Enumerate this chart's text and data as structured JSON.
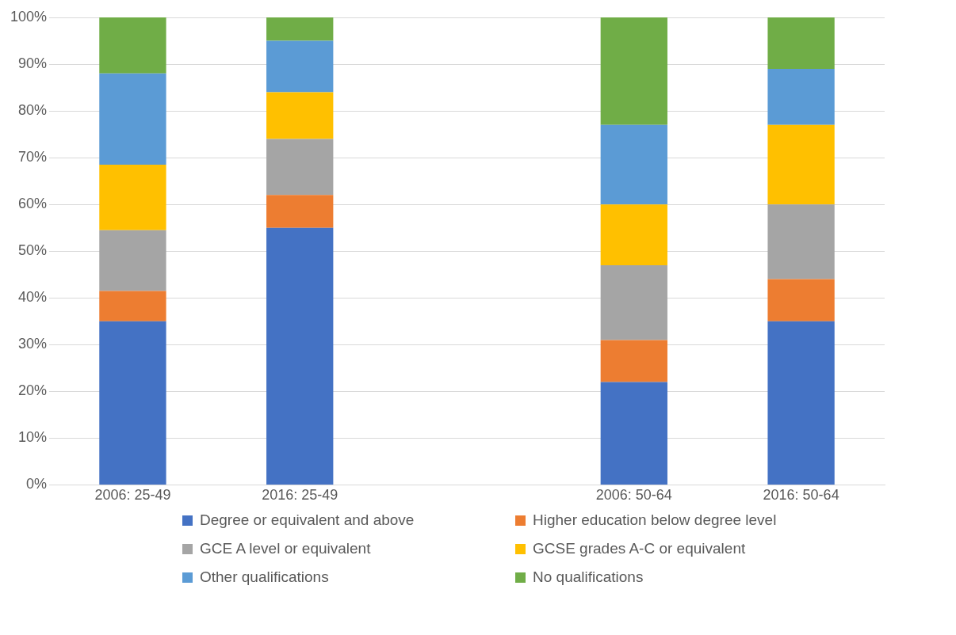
{
  "chart_data": {
    "type": "bar",
    "stacked": true,
    "categories": [
      "2006: 25-49",
      "2016: 25-49",
      null,
      "2006: 50-64",
      "2016: 50-64"
    ],
    "series": [
      {
        "name": "Degree or equivalent and above",
        "color": "#4472c4",
        "values": [
          35,
          55,
          null,
          22,
          35
        ]
      },
      {
        "name": "Higher education below degree level",
        "color": "#ed7d31",
        "values": [
          6.5,
          7,
          null,
          9,
          9
        ]
      },
      {
        "name": "GCE A level or equivalent",
        "color": "#a5a5a5",
        "values": [
          13,
          12,
          null,
          16,
          16
        ]
      },
      {
        "name": "GCSE grades A-C or equivalent",
        "color": "#ffc000",
        "values": [
          14,
          10,
          null,
          13,
          17
        ]
      },
      {
        "name": "Other qualifications",
        "color": "#5b9bd5",
        "values": [
          19.5,
          11,
          null,
          17,
          12
        ]
      },
      {
        "name": "No qualifications",
        "color": "#70ad47",
        "values": [
          12,
          5,
          null,
          23,
          11
        ]
      }
    ],
    "ylim": [
      0,
      100
    ],
    "yticks": [
      {
        "value": 0,
        "label": "0%"
      },
      {
        "value": 10,
        "label": "10%"
      },
      {
        "value": 20,
        "label": "20%"
      },
      {
        "value": 30,
        "label": "30%"
      },
      {
        "value": 40,
        "label": "40%"
      },
      {
        "value": 50,
        "label": "50%"
      },
      {
        "value": 60,
        "label": "60%"
      },
      {
        "value": 70,
        "label": "70%"
      },
      {
        "value": 80,
        "label": "80%"
      },
      {
        "value": 90,
        "label": "90%"
      },
      {
        "value": 100,
        "label": "100%"
      }
    ],
    "grid": "y",
    "legend": "bottom"
  }
}
